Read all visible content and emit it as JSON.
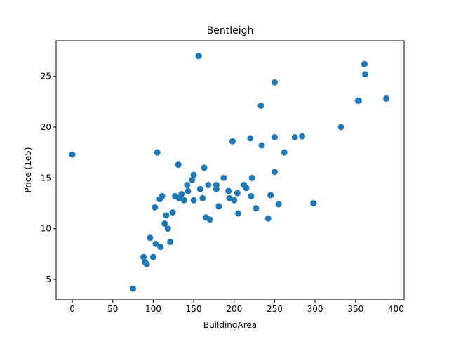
{
  "chart_data": {
    "type": "scatter",
    "title": "Bentleigh",
    "xlabel": "BuildingArea",
    "ylabel": "Price (1e5)",
    "xlim": [
      -20,
      410
    ],
    "ylim": [
      3,
      28.5
    ],
    "xticks": [
      0,
      50,
      100,
      150,
      200,
      250,
      300,
      350,
      400
    ],
    "yticks": [
      5,
      10,
      15,
      20,
      25
    ],
    "grid": false,
    "legend": "none",
    "colors": {
      "points": "#1f77b4",
      "axes": "#000000",
      "background": "#ffffff"
    },
    "series": [
      {
        "points": [
          [
            0,
            17.3
          ],
          [
            75,
            4.1
          ],
          [
            88,
            7.2
          ],
          [
            90,
            6.7
          ],
          [
            92,
            6.5
          ],
          [
            96,
            9.1
          ],
          [
            100,
            7.2
          ],
          [
            102,
            12.1
          ],
          [
            103,
            8.5
          ],
          [
            105,
            17.5
          ],
          [
            108,
            12.9
          ],
          [
            109,
            8.2
          ],
          [
            111,
            13.2
          ],
          [
            114,
            10.5
          ],
          [
            116,
            11.3
          ],
          [
            118,
            10.0
          ],
          [
            121,
            8.7
          ],
          [
            124,
            11.6
          ],
          [
            127,
            13.2
          ],
          [
            131,
            16.3
          ],
          [
            132,
            13.0
          ],
          [
            135,
            13.4
          ],
          [
            138,
            12.8
          ],
          [
            142,
            14.3
          ],
          [
            143,
            13.7
          ],
          [
            148,
            14.8
          ],
          [
            150,
            15.3
          ],
          [
            150,
            12.8
          ],
          [
            156,
            27.0
          ],
          [
            158,
            13.9
          ],
          [
            161,
            13.0
          ],
          [
            163,
            16.0
          ],
          [
            165,
            11.1
          ],
          [
            168,
            14.3
          ],
          [
            170,
            10.9
          ],
          [
            178,
            14.3
          ],
          [
            178,
            13.9
          ],
          [
            181,
            12.2
          ],
          [
            187,
            15.0
          ],
          [
            193,
            13.7
          ],
          [
            194,
            13.0
          ],
          [
            198,
            18.6
          ],
          [
            200,
            12.8
          ],
          [
            204,
            13.5
          ],
          [
            205,
            11.5
          ],
          [
            212,
            14.3
          ],
          [
            215,
            14.0
          ],
          [
            220,
            18.9
          ],
          [
            221,
            13.2
          ],
          [
            222,
            15.0
          ],
          [
            227,
            12.0
          ],
          [
            233,
            22.1
          ],
          [
            234,
            18.2
          ],
          [
            242,
            11.0
          ],
          [
            245,
            13.3
          ],
          [
            250,
            24.4
          ],
          [
            250,
            19.0
          ],
          [
            250,
            15.6
          ],
          [
            255,
            12.4
          ],
          [
            262,
            17.5
          ],
          [
            275,
            19.0
          ],
          [
            284,
            19.1
          ],
          [
            298,
            12.5
          ],
          [
            332,
            20.0
          ],
          [
            353,
            22.6
          ],
          [
            354,
            22.6
          ],
          [
            361,
            26.2
          ],
          [
            362,
            25.2
          ],
          [
            388,
            22.8
          ]
        ]
      }
    ]
  }
}
